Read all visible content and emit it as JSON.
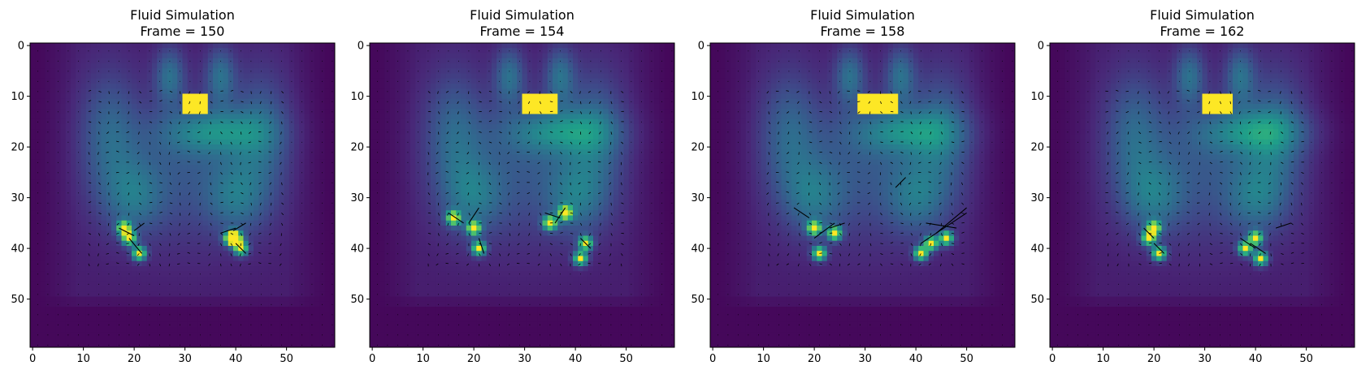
{
  "chart_data": [
    {
      "type": "heatmap",
      "title": "Fluid Simulation\nFrame = 150",
      "title_lines": [
        "Fluid Simulation",
        "Frame = 150"
      ],
      "colormap": "viridis",
      "overlay": "quiver",
      "x_ticks": [
        "0",
        "10",
        "20",
        "30",
        "40",
        "50"
      ],
      "y_ticks": [
        "0",
        "10",
        "20",
        "30",
        "40",
        "50"
      ],
      "xlim": [
        -0.5,
        59.5
      ],
      "ylim": [
        59.5,
        -0.5
      ],
      "source_block": {
        "x": [
          30,
          34
        ],
        "y": [
          10,
          13
        ]
      },
      "hotspots": [
        [
          19,
          38
        ],
        [
          21,
          41
        ],
        [
          18,
          36
        ],
        [
          39,
          38
        ],
        [
          41,
          40
        ],
        [
          40,
          38
        ]
      ],
      "vorticity_arrows": [
        {
          "x": 17,
          "y": 36,
          "dx": 3,
          "dy": 1.5
        },
        {
          "x": 19,
          "y": 38,
          "dx": 2.5,
          "dy": 3
        },
        {
          "x": 22,
          "y": 35,
          "dx": -2,
          "dy": 1.5
        },
        {
          "x": 37,
          "y": 37,
          "dx": 3,
          "dy": -1
        },
        {
          "x": 40,
          "y": 39,
          "dx": 2,
          "dy": 2
        },
        {
          "x": 42,
          "y": 35,
          "dx": -2.5,
          "dy": 1.5
        }
      ]
    },
    {
      "type": "heatmap",
      "title": "Fluid Simulation\nFrame = 154",
      "title_lines": [
        "Fluid Simulation",
        "Frame = 154"
      ],
      "colormap": "viridis",
      "overlay": "quiver",
      "x_ticks": [
        "0",
        "10",
        "20",
        "30",
        "40",
        "50"
      ],
      "y_ticks": [
        "0",
        "10",
        "20",
        "30",
        "40",
        "50"
      ],
      "xlim": [
        -0.5,
        59.5
      ],
      "ylim": [
        59.5,
        -0.5
      ],
      "source_block": {
        "x": [
          30,
          36
        ],
        "y": [
          10,
          13
        ]
      },
      "hotspots": [
        [
          16,
          34
        ],
        [
          20,
          36
        ],
        [
          21,
          40
        ],
        [
          35,
          35
        ],
        [
          38,
          33
        ],
        [
          42,
          39
        ],
        [
          41,
          42
        ]
      ],
      "vorticity_arrows": [
        {
          "x": 15,
          "y": 33,
          "dx": 3,
          "dy": 2
        },
        {
          "x": 19,
          "y": 35,
          "dx": 2,
          "dy": -3
        },
        {
          "x": 21,
          "y": 38,
          "dx": 1,
          "dy": 3
        },
        {
          "x": 34,
          "y": 33,
          "dx": 3,
          "dy": 1
        },
        {
          "x": 38,
          "y": 32,
          "dx": -2,
          "dy": 3
        },
        {
          "x": 41,
          "y": 38,
          "dx": 2,
          "dy": 2
        }
      ]
    },
    {
      "type": "heatmap",
      "title": "Fluid Simulation\nFrame = 158",
      "title_lines": [
        "Fluid Simulation",
        "Frame = 158"
      ],
      "colormap": "viridis",
      "overlay": "quiver",
      "x_ticks": [
        "0",
        "10",
        "20",
        "30",
        "40",
        "50"
      ],
      "y_ticks": [
        "0",
        "10",
        "20",
        "30",
        "40",
        "50"
      ],
      "xlim": [
        -0.5,
        59.5
      ],
      "ylim": [
        59.5,
        -0.5
      ],
      "source_block": {
        "x": [
          29,
          36
        ],
        "y": [
          10,
          13
        ]
      },
      "hotspots": [
        [
          21,
          41
        ],
        [
          20,
          36
        ],
        [
          41,
          41
        ],
        [
          43,
          39
        ],
        [
          46,
          38
        ],
        [
          24,
          37
        ]
      ],
      "vorticity_arrows": [
        {
          "x": 16,
          "y": 32,
          "dx": 3,
          "dy": 2
        },
        {
          "x": 20,
          "y": 38,
          "dx": 4,
          "dy": -3
        },
        {
          "x": 23,
          "y": 36,
          "dx": 3,
          "dy": -1
        },
        {
          "x": 36,
          "y": 28,
          "dx": 2,
          "dy": -2
        },
        {
          "x": 41,
          "y": 39,
          "dx": 9,
          "dy": -6
        },
        {
          "x": 44,
          "y": 37,
          "dx": 6,
          "dy": -5
        },
        {
          "x": 42,
          "y": 35,
          "dx": 6,
          "dy": 1
        }
      ]
    },
    {
      "type": "heatmap",
      "title": "Fluid Simulation\nFrame = 162",
      "title_lines": [
        "Fluid Simulation",
        "Frame = 162"
      ],
      "colormap": "viridis",
      "overlay": "quiver",
      "x_ticks": [
        "0",
        "10",
        "20",
        "30",
        "40",
        "50"
      ],
      "y_ticks": [
        "0",
        "10",
        "20",
        "30",
        "40",
        "50"
      ],
      "xlim": [
        -0.5,
        59.5
      ],
      "ylim": [
        59.5,
        -0.5
      ],
      "source_block": {
        "x": [
          30,
          35
        ],
        "y": [
          10,
          13
        ]
      },
      "hotspots": [
        [
          19,
          38
        ],
        [
          21,
          41
        ],
        [
          20,
          36
        ],
        [
          41,
          42
        ],
        [
          38,
          40
        ],
        [
          40,
          38
        ]
      ],
      "vorticity_arrows": [
        {
          "x": 18,
          "y": 36,
          "dx": 2,
          "dy": 2
        },
        {
          "x": 20,
          "y": 39,
          "dx": 2,
          "dy": 2
        },
        {
          "x": 37,
          "y": 38,
          "dx": 3,
          "dy": 2
        },
        {
          "x": 39,
          "y": 39,
          "dx": 3,
          "dy": 2
        },
        {
          "x": 44,
          "y": 36,
          "dx": 3,
          "dy": -1
        }
      ]
    }
  ]
}
